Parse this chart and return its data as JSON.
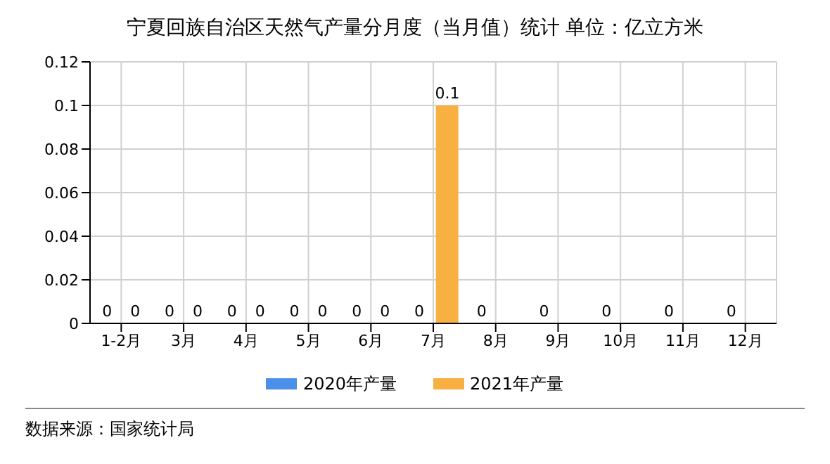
{
  "chart_data": {
    "type": "bar",
    "title": "宁夏回族自治区天然气产量分月度（当月值）统计 单位：亿立方米",
    "categories": [
      "1-2月",
      "3月",
      "4月",
      "5月",
      "6月",
      "7月",
      "8月",
      "9月",
      "10月",
      "11月",
      "12月"
    ],
    "series": [
      {
        "name": "2020年产量",
        "color": "#4a8fe8",
        "values": [
          0,
          0,
          0,
          0,
          0,
          0,
          0,
          0,
          0,
          0,
          0
        ]
      },
      {
        "name": "2021年产量",
        "color": "#f9b042",
        "values": [
          0,
          0,
          0,
          0,
          0,
          0.1,
          null,
          null,
          null,
          null,
          null
        ]
      }
    ],
    "ylim": [
      0,
      0.12
    ],
    "yticks": [
      0,
      0.02,
      0.04,
      0.06,
      0.08,
      0.1,
      0.12
    ],
    "grid": true,
    "legend": "bottom",
    "data_labels": true,
    "annotations": [
      "数据来源：国家统计局"
    ]
  }
}
